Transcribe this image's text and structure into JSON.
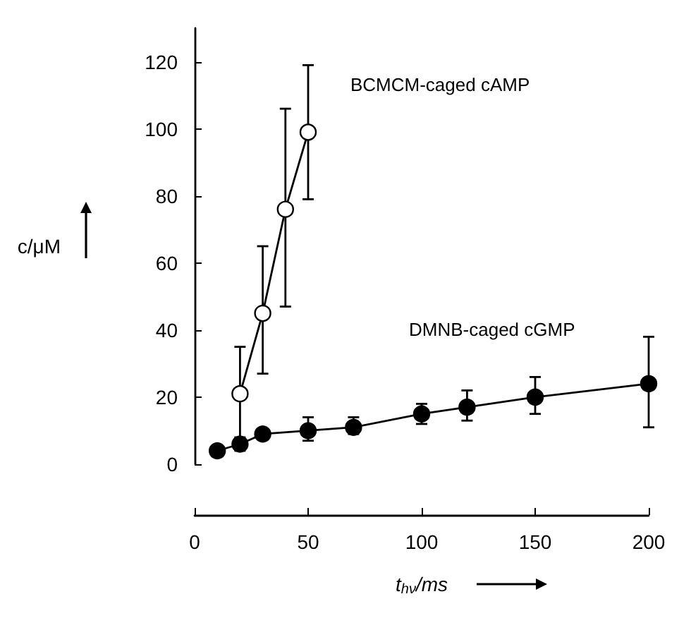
{
  "chart_data": {
    "type": "line",
    "xlabel": "t$_{hν}$/ms",
    "ylabel": "c/μM",
    "xlim": [
      0,
      200
    ],
    "xticks": [
      0,
      50,
      100,
      150,
      200
    ],
    "ylim": [
      0,
      130
    ],
    "yticks": [
      0,
      20,
      40,
      60,
      80,
      100,
      120
    ],
    "grid": false,
    "legend": false,
    "marker": "circle",
    "line_style": "solid",
    "series": [
      {
        "name": "BCMCM-caged cAMP",
        "color": "#ffffff",
        "x": [
          20,
          30,
          40,
          50
        ],
        "values": [
          21,
          45,
          76,
          99
        ],
        "errors": [
          [
            7,
            35
          ],
          [
            27,
            65
          ],
          [
            47,
            106
          ],
          [
            79,
            119
          ]
        ]
      },
      {
        "name": "DMNB-caged cGMP",
        "color": "#000000",
        "x": [
          10,
          20,
          30,
          50,
          70,
          100,
          120,
          150,
          200
        ],
        "values": [
          4,
          6,
          9,
          10,
          11,
          15,
          17,
          20,
          24
        ],
        "errors": [
          null,
          [
            4,
            8
          ],
          null,
          [
            7,
            14
          ],
          [
            9,
            14
          ],
          [
            12,
            18
          ],
          [
            13,
            22
          ],
          [
            15,
            26
          ],
          [
            11,
            38
          ]
        ]
      }
    ]
  }
}
